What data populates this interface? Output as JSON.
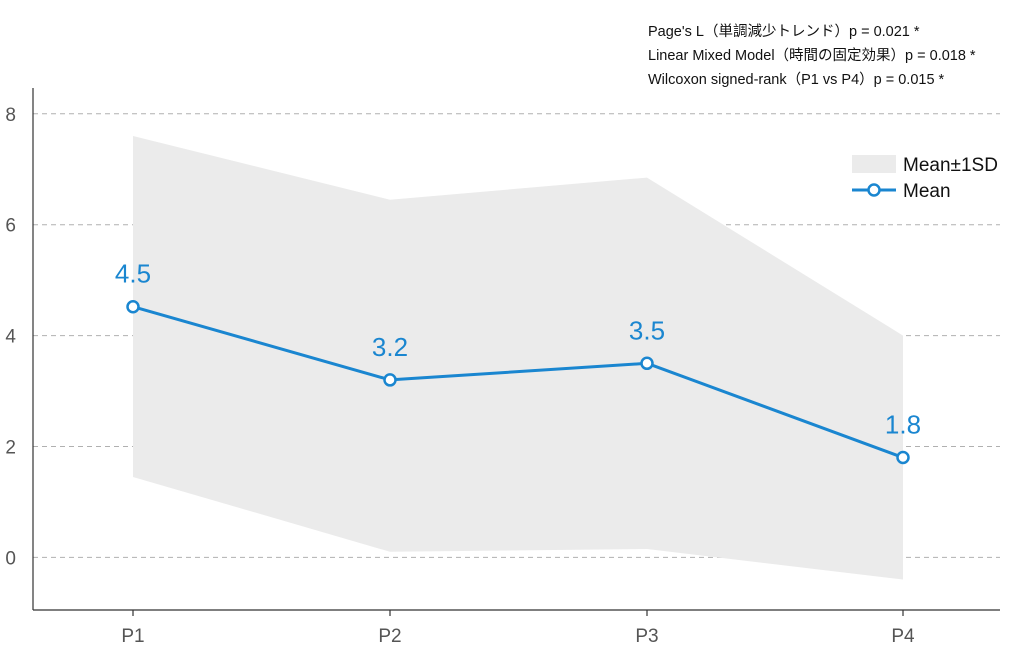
{
  "annotations": [
    "Page's L（単調減少トレンド）p = 0.021 *",
    "Linear Mixed Model（時間の固定効果）p = 0.018 *",
    "Wilcoxon signed-rank（P1 vs P4）p = 0.015 *"
  ],
  "legend": {
    "band_label": "Mean±1SD",
    "line_label": "Mean"
  },
  "colors": {
    "line": "#1a86d0",
    "band": "#ebebeb",
    "label": "#1a86d0",
    "grid": "#b0b0b0",
    "axis": "#333333"
  },
  "chart_data": {
    "type": "line",
    "categories": [
      "P1",
      "P2",
      "P3",
      "P4"
    ],
    "series": [
      {
        "name": "Mean",
        "values": [
          4.52,
          3.2,
          3.5,
          1.8
        ],
        "labels": [
          "4.5",
          "3.2",
          "3.5",
          "1.8"
        ]
      }
    ],
    "band": {
      "name": "Mean±1SD",
      "upper": [
        7.6,
        6.45,
        6.85,
        4.0
      ],
      "lower": [
        1.45,
        0.1,
        0.15,
        -0.4
      ]
    },
    "yticks": [
      0,
      2,
      4,
      6,
      8
    ],
    "ylim": [
      -0.95,
      8.7
    ],
    "title": "",
    "xlabel": "",
    "ylabel": "",
    "grid": "y-dashed",
    "legend_position": "top-right"
  }
}
